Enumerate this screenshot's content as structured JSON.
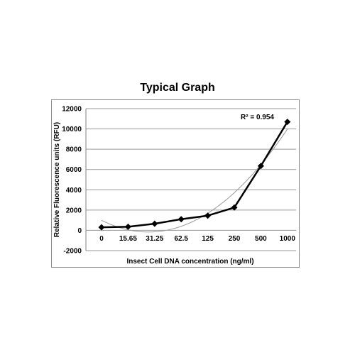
{
  "chart_data": {
    "type": "line",
    "title": "Typical Graph",
    "xlabel": "Insect Cell DNA concentration (ng/ml)",
    "ylabel": "Relative Fluorescence units (RFU)",
    "categories": [
      "0",
      "15.65",
      "31.25",
      "62.5",
      "125",
      "250",
      "500",
      "1000"
    ],
    "series": [
      {
        "values": [
          300,
          350,
          650,
          1100,
          1450,
          2250,
          6350,
          10700
        ],
        "color": "#000000",
        "marker": "diamond"
      }
    ],
    "trendline": {
      "type": "polynomial",
      "color": "#999999",
      "r_squared_label": "R² = 0.954"
    },
    "ylim": [
      -2000,
      12000
    ],
    "yticks": [
      -2000,
      0,
      2000,
      4000,
      6000,
      8000,
      10000,
      12000
    ],
    "ytick_labels": [
      "-2000",
      "0",
      "2000",
      "4000",
      "6000",
      "8000",
      "10000",
      "12000"
    ],
    "grid": true,
    "legend": "none"
  }
}
